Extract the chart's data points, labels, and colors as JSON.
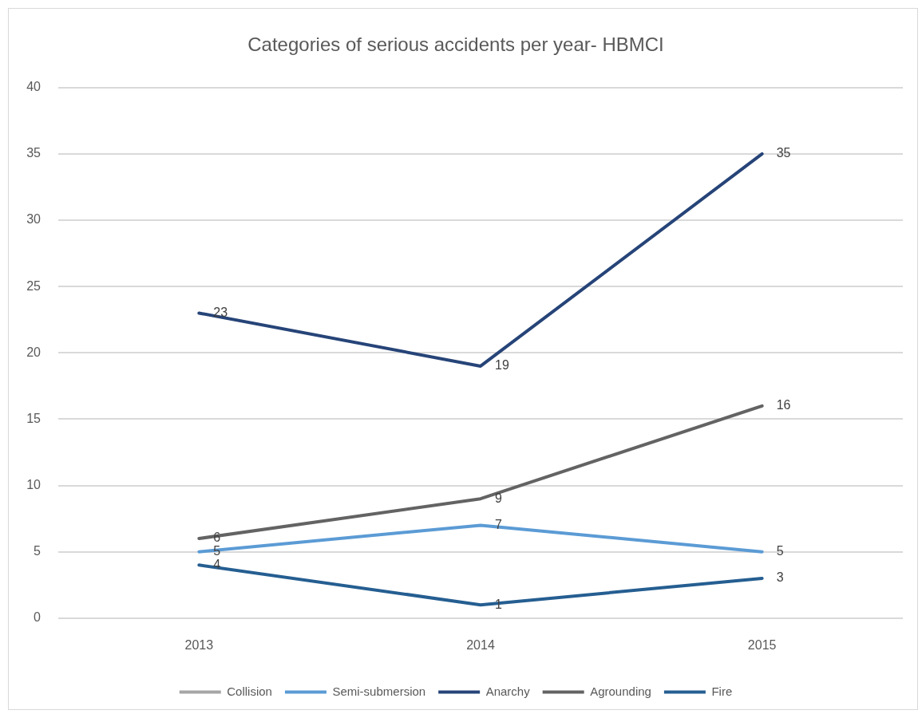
{
  "chart_data": {
    "type": "line",
    "title": "Categories of serious accidents per year- HBMCI",
    "categories": [
      "2013",
      "2014",
      "2015"
    ],
    "series": [
      {
        "name": "Collision",
        "color": "#a5a5a5",
        "values": [
          null,
          null,
          null
        ]
      },
      {
        "name": "Semi-submersion",
        "color": "#5b9bd5",
        "values": [
          5,
          7,
          5
        ]
      },
      {
        "name": "Anarchy",
        "color": "#264478",
        "values": [
          23,
          19,
          35
        ]
      },
      {
        "name": "Agrounding",
        "color": "#636363",
        "values": [
          6,
          9,
          16
        ]
      },
      {
        "name": "Fire",
        "color": "#255e91",
        "values": [
          4,
          1,
          3
        ]
      }
    ],
    "ylim": [
      0,
      40
    ],
    "yticks": [
      0,
      5,
      10,
      15,
      20,
      25,
      30,
      35,
      40
    ],
    "grid": "y",
    "legend": "bottom",
    "marker": "none",
    "line_style": "solid",
    "data_labels": true
  }
}
